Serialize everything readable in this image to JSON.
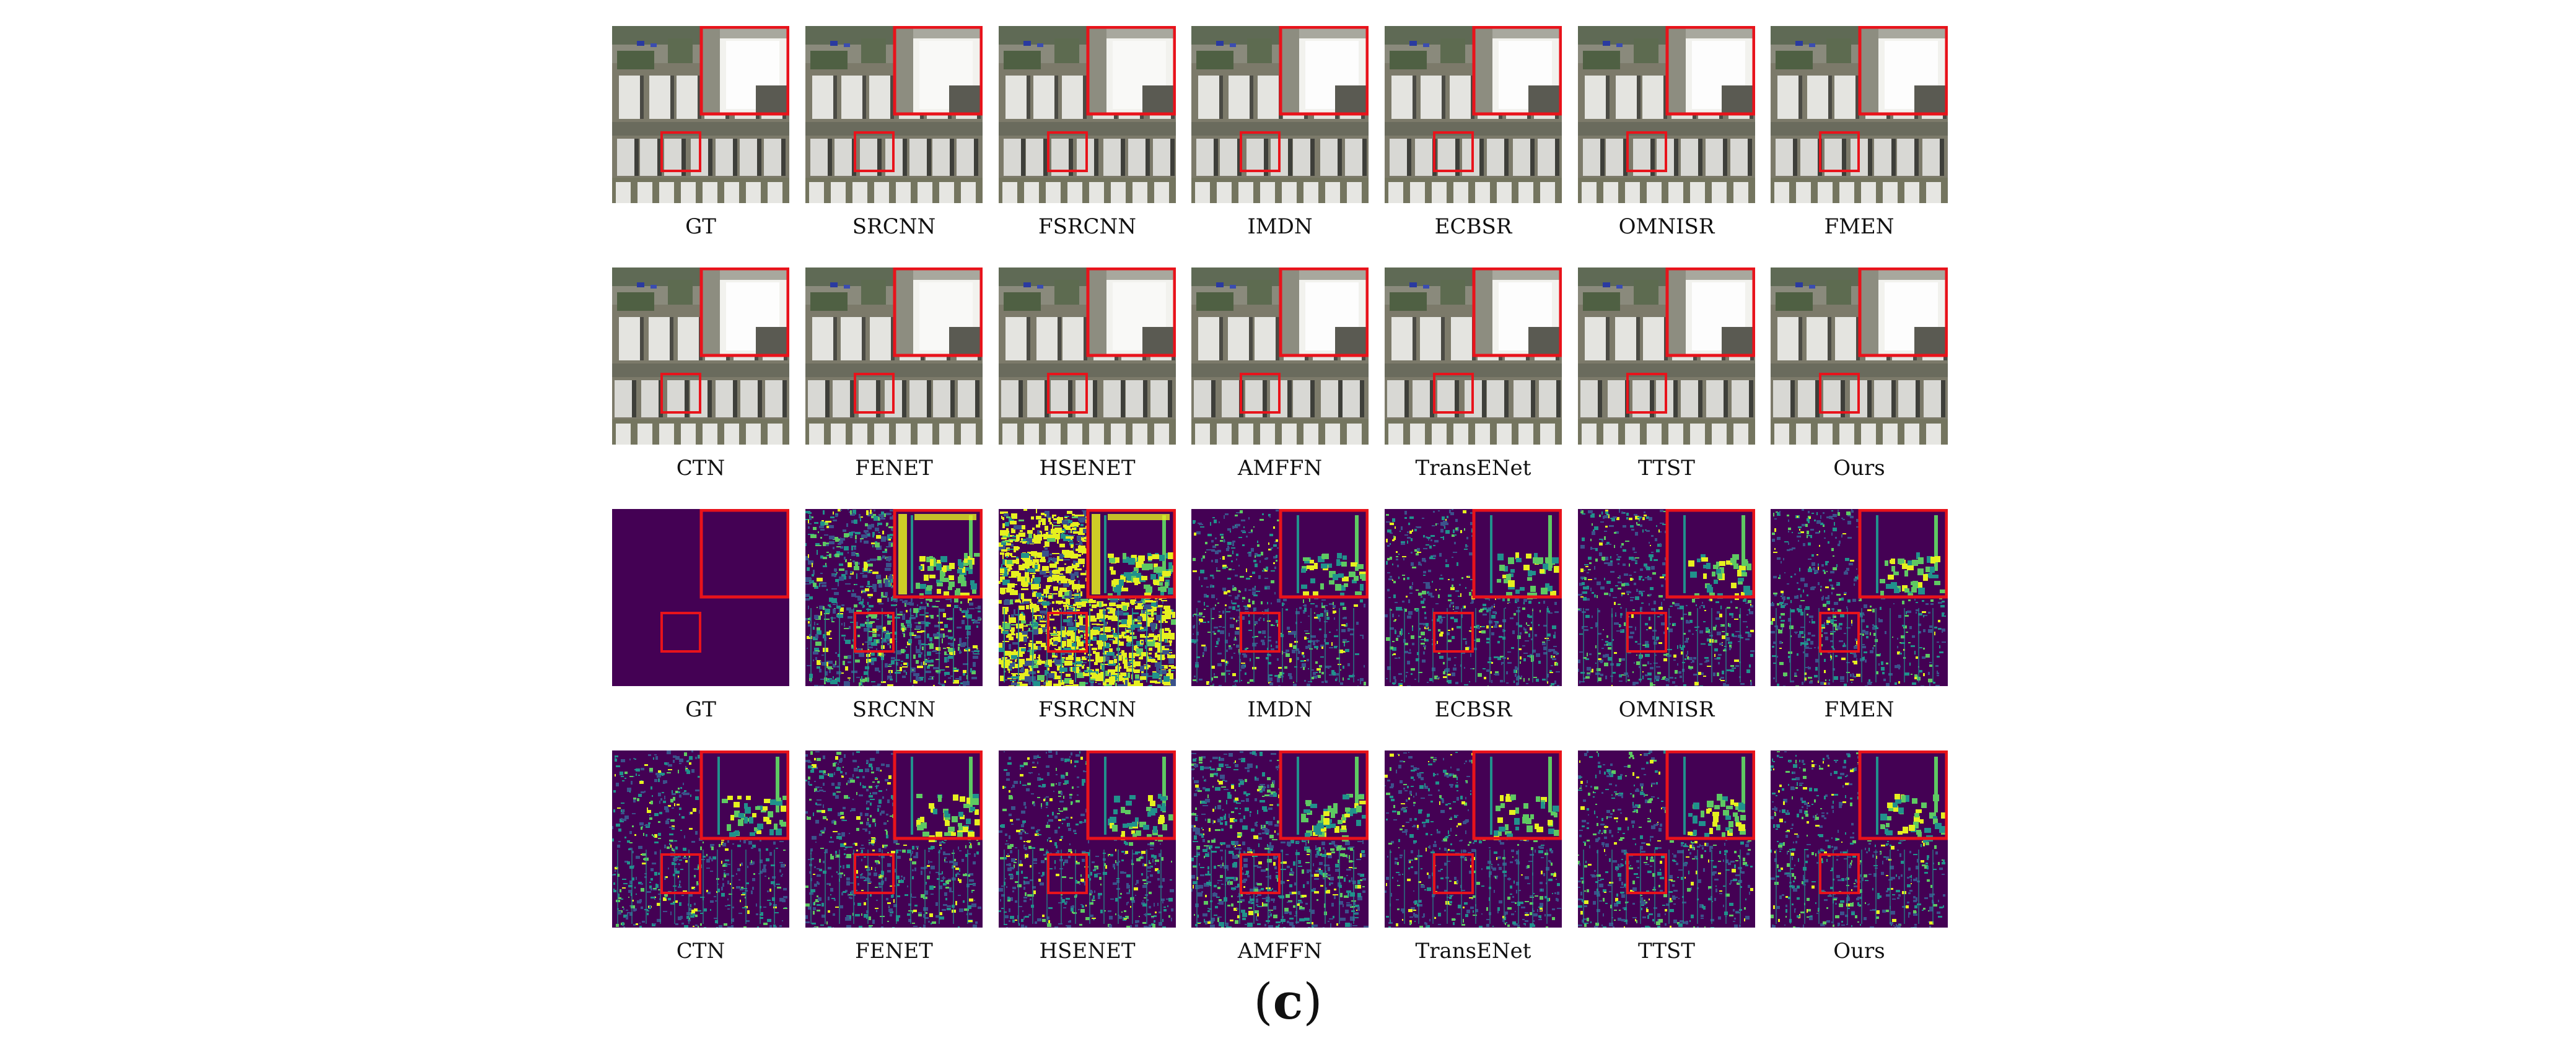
{
  "figure": {
    "panel_label": "c",
    "rows": [
      {
        "kind": "photo",
        "labels": [
          "GT",
          "SRCNN",
          "FSRCNN",
          "IMDN",
          "ECBSR",
          "OMNISR",
          "FMEN"
        ]
      },
      {
        "kind": "photo",
        "labels": [
          "CTN",
          "FENET",
          "HSENET",
          "AMFFN",
          "TransENet",
          "TTST",
          "Ours"
        ]
      },
      {
        "kind": "error_map",
        "labels": [
          "GT",
          "SRCNN",
          "FSRCNN",
          "IMDN",
          "ECBSR",
          "OMNISR",
          "FMEN"
        ]
      },
      {
        "kind": "error_map",
        "labels": [
          "CTN",
          "FENET",
          "HSENET",
          "AMFFN",
          "TransENet",
          "TTST",
          "Ours"
        ]
      }
    ],
    "error_density": {
      "row3": [
        0,
        0.55,
        0.9,
        0.3,
        0.28,
        0.32,
        0.3
      ],
      "row4": [
        0.3,
        0.35,
        0.3,
        0.45,
        0.27,
        0.3,
        0.28
      ]
    },
    "colors": {
      "highlight_box": "#e8131b",
      "map_background": "#440154",
      "map_mid": "#3b528b",
      "map_teal": "#21918c",
      "map_green": "#5ec962",
      "map_yellow": "#e6f01f"
    }
  }
}
